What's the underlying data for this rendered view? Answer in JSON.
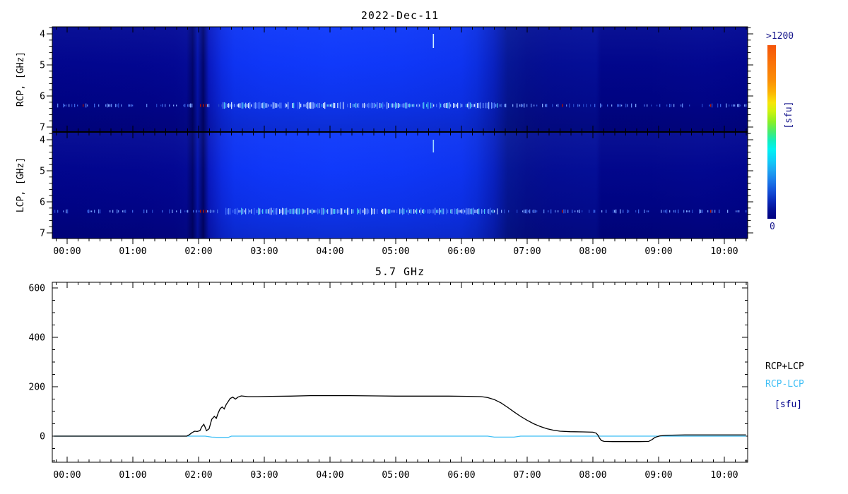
{
  "header": {
    "date": "2022-Dec-11"
  },
  "spectrogram": {
    "rcp_axis_label": "RCP, [GHz]",
    "lcp_axis_label": "LCP, [GHz]",
    "freq_tick_labels": [
      "4",
      "5",
      "6",
      "7"
    ],
    "freq_tick_values": [
      4,
      5,
      6,
      7
    ],
    "time_tick_labels": [
      "00:00",
      "01:00",
      "02:00",
      "03:00",
      "04:00",
      "05:00",
      "06:00",
      "07:00",
      "08:00",
      "09:00",
      "10:00"
    ],
    "colorbar": {
      "max_label": ">1200",
      "min_label": "0",
      "unit_label": "[sfu]"
    }
  },
  "timeseries": {
    "title": "5.7 GHz",
    "y_tick_labels": [
      "0",
      "200",
      "400",
      "600"
    ],
    "y_tick_values": [
      0,
      200,
      400,
      600
    ],
    "time_tick_labels": [
      "00:00",
      "01:00",
      "02:00",
      "03:00",
      "04:00",
      "05:00",
      "06:00",
      "07:00",
      "08:00",
      "09:00",
      "10:00"
    ],
    "legend": [
      {
        "label": "RCP+LCP",
        "color": "#000000"
      },
      {
        "label": "RCP-LCP",
        "color": "#3FBFF5"
      },
      {
        "label": "[sfu]",
        "color": "#00008B"
      }
    ]
  },
  "colors": {
    "quiet_background": "#000389",
    "enhanced_emission_peak": "#0F39FB",
    "rcp_plus_lcp_line": "#000000",
    "rcp_minus_lcp_line": "#3FBFF5",
    "colorbar_text": "#16168C"
  },
  "chart_data": [
    {
      "type": "heatmap",
      "title": "2022-Dec-11",
      "panels": [
        {
          "name": "RCP",
          "ylabel": "RCP, [GHz]"
        },
        {
          "name": "LCP",
          "ylabel": "LCP, [GHz]"
        }
      ],
      "y_axis": {
        "unit": "GHz",
        "ticks": [
          4,
          5,
          6,
          7
        ],
        "direction": "inverted"
      },
      "x_axis": {
        "ticks": [
          "00:00",
          "01:00",
          "02:00",
          "03:00",
          "04:00",
          "05:00",
          "06:00",
          "07:00",
          "08:00",
          "09:00",
          "10:00"
        ]
      },
      "colorbar": {
        "min": 0,
        "max": 1200,
        "max_label": ">1200",
        "min_label": "0",
        "unit": "[sfu]"
      },
      "features": {
        "enhanced_emission": {
          "start_hour": 2.33,
          "end_hour": 6.6
        },
        "interference_band_ghz": 6.3,
        "bright_point": {
          "hour": 5.56,
          "freq_ghz": 4.3
        },
        "dark_calibration_bands_hours": [
          2.0,
          2.2
        ],
        "background_step_hour": 8.06
      }
    },
    {
      "type": "line",
      "title": "5.7 GHz",
      "ylabel": "[sfu]",
      "ylim": [
        -106,
        623
      ],
      "xlim": [
        -0.23,
        10.35
      ],
      "x_unit": "hours UT",
      "series": [
        {
          "name": "RCP+LCP",
          "color": "#000000",
          "points": [
            [
              -0.2,
              0
            ],
            [
              0.5,
              0
            ],
            [
              1.0,
              0
            ],
            [
              1.5,
              0
            ],
            [
              1.82,
              0
            ],
            [
              1.86,
              6
            ],
            [
              1.9,
              14
            ],
            [
              1.94,
              20
            ],
            [
              1.98,
              19
            ],
            [
              2.02,
              22
            ],
            [
              2.05,
              38
            ],
            [
              2.08,
              48
            ],
            [
              2.1,
              36
            ],
            [
              2.12,
              22
            ],
            [
              2.16,
              30
            ],
            [
              2.2,
              68
            ],
            [
              2.24,
              80
            ],
            [
              2.27,
              72
            ],
            [
              2.3,
              95
            ],
            [
              2.33,
              112
            ],
            [
              2.36,
              118
            ],
            [
              2.39,
              110
            ],
            [
              2.42,
              128
            ],
            [
              2.45,
              140
            ],
            [
              2.48,
              152
            ],
            [
              2.52,
              158
            ],
            [
              2.56,
              150
            ],
            [
              2.6,
              158
            ],
            [
              2.65,
              163
            ],
            [
              2.75,
              160
            ],
            [
              2.9,
              160
            ],
            [
              3.1,
              161
            ],
            [
              3.4,
              162
            ],
            [
              3.7,
              164
            ],
            [
              4.0,
              164
            ],
            [
              4.3,
              164
            ],
            [
              4.7,
              163
            ],
            [
              5.0,
              162
            ],
            [
              5.4,
              162
            ],
            [
              5.8,
              162
            ],
            [
              6.1,
              161
            ],
            [
              6.3,
              160
            ],
            [
              6.4,
              156
            ],
            [
              6.5,
              148
            ],
            [
              6.6,
              135
            ],
            [
              6.7,
              117
            ],
            [
              6.8,
              98
            ],
            [
              6.9,
              80
            ],
            [
              7.0,
              64
            ],
            [
              7.1,
              50
            ],
            [
              7.2,
              39
            ],
            [
              7.3,
              30
            ],
            [
              7.4,
              24
            ],
            [
              7.5,
              20
            ],
            [
              7.65,
              18
            ],
            [
              7.85,
              17
            ],
            [
              8.0,
              16
            ],
            [
              8.05,
              12
            ],
            [
              8.08,
              3
            ],
            [
              8.1,
              -8
            ],
            [
              8.13,
              -18
            ],
            [
              8.17,
              -21
            ],
            [
              8.3,
              -22
            ],
            [
              8.5,
              -22
            ],
            [
              8.7,
              -22
            ],
            [
              8.85,
              -21
            ],
            [
              8.9,
              -14
            ],
            [
              8.94,
              -6
            ],
            [
              8.98,
              -2
            ],
            [
              9.02,
              1
            ],
            [
              9.1,
              3
            ],
            [
              9.2,
              4
            ],
            [
              9.4,
              5
            ],
            [
              9.7,
              5
            ],
            [
              10.0,
              5
            ],
            [
              10.33,
              5
            ]
          ]
        },
        {
          "name": "RCP-LCP",
          "color": "#3FBFF5",
          "points": [
            [
              -0.2,
              0
            ],
            [
              2.1,
              0
            ],
            [
              2.2,
              -4
            ],
            [
              2.3,
              -5
            ],
            [
              2.45,
              -5
            ],
            [
              2.5,
              0
            ],
            [
              6.4,
              0
            ],
            [
              6.5,
              -4
            ],
            [
              6.8,
              -4
            ],
            [
              6.9,
              0
            ],
            [
              10.33,
              0
            ]
          ]
        }
      ]
    }
  ]
}
